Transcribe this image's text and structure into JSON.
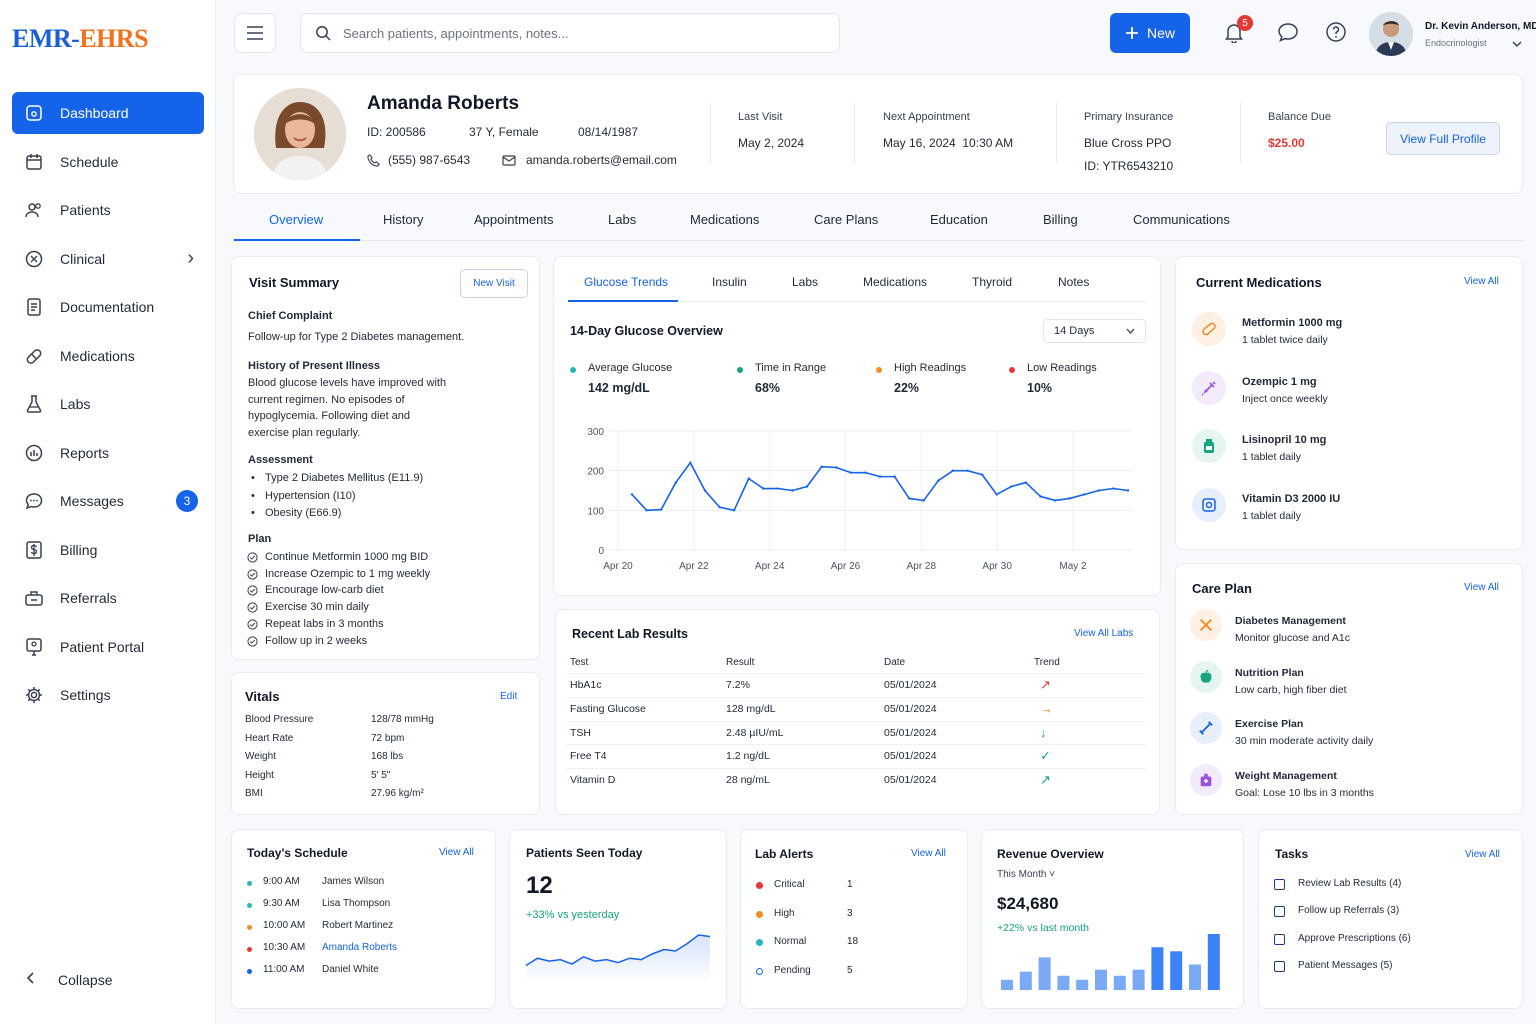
{
  "logo": {
    "part1": "EMR-",
    "part2": "EHRS"
  },
  "sidebar": {
    "items": [
      {
        "label": "Dashboard",
        "icon": "home-icon",
        "active": true
      },
      {
        "label": "Schedule",
        "icon": "calendar-icon"
      },
      {
        "label": "Patients",
        "icon": "users-icon"
      },
      {
        "label": "Clinical",
        "icon": "clinical-icon",
        "chevron": "›"
      },
      {
        "label": "Documentation",
        "icon": "document-icon"
      },
      {
        "label": "Medications",
        "icon": "pill-icon"
      },
      {
        "label": "Labs",
        "icon": "flask-icon"
      },
      {
        "label": "Reports",
        "icon": "chart-icon"
      },
      {
        "label": "Messages",
        "icon": "message-icon",
        "badge": "3"
      },
      {
        "label": "Billing",
        "icon": "dollar-icon"
      },
      {
        "label": "Referrals",
        "icon": "referral-icon"
      },
      {
        "label": "Patient Portal",
        "icon": "portal-icon"
      },
      {
        "label": "Settings",
        "icon": "gear-icon"
      }
    ],
    "collapse_label": "Collapse"
  },
  "topbar": {
    "search_placeholder": "Search patients, appointments, notes...",
    "new_label": "New",
    "notification_count": "5",
    "doctor_name": "Dr. Kevin Anderson, MD",
    "doctor_role": "Endocrinologist"
  },
  "patient": {
    "name": "Amanda Roberts",
    "id": "ID: 200586",
    "age_sex": "37 Y, Female",
    "dob": "08/14/1987",
    "phone": "(555) 987-6543",
    "email": "amanda.roberts@email.com",
    "last_visit_label": "Last Visit",
    "last_visit": "May 2, 2024",
    "next_appt_label": "Next Appointment",
    "next_appt": "May 16, 2024  10:30 AM",
    "insurance_label": "Primary Insurance",
    "insurance": "Blue Cross PPO",
    "insurance_id": "ID: YTR6543210",
    "balance_label": "Balance Due",
    "balance": "$25.00",
    "view_profile": "View Full Profile"
  },
  "tabs": [
    "Overview",
    "History",
    "Appointments",
    "Labs",
    "Medications",
    "Care Plans",
    "Education",
    "Billing",
    "Communications"
  ],
  "visit_summary": {
    "title": "Visit Summary",
    "new_visit": "New Visit",
    "chief_complaint_label": "Chief Complaint",
    "chief_complaint": "Follow-up for Type 2 Diabetes management.",
    "hpi_label": "History of Present Illness",
    "hpi_lines": [
      "Blood glucose levels have improved with",
      "current regimen. No episodes of",
      "hypoglycemia. Following diet and",
      "exercise plan regularly."
    ],
    "assessment_label": "Assessment",
    "assessment": [
      "Type 2 Diabetes Mellitus (E11.9)",
      "Hypertension (I10)",
      "Obesity (E66.9)"
    ],
    "plan_label": "Plan",
    "plan": [
      "Continue Metformin 1000 mg BID",
      "Increase Ozempic to 1 mg weekly",
      "Encourage low-carb diet",
      "Exercise 30 min daily",
      "Repeat labs in 3 months",
      "Follow up in 2 weeks"
    ]
  },
  "vitals": {
    "title": "Vitals",
    "edit": "Edit",
    "rows": [
      {
        "label": "Blood Pressure",
        "value": "128/78 mmHg"
      },
      {
        "label": "Heart Rate",
        "value": "72 bpm"
      },
      {
        "label": "Weight",
        "value": "168 lbs"
      },
      {
        "label": "Height",
        "value": "5' 5\""
      },
      {
        "label": "BMI",
        "value": "27.96 kg/m²"
      }
    ]
  },
  "glucose": {
    "tabs": [
      "Glucose Trends",
      "Insulin",
      "Labs",
      "Medications",
      "Thyroid",
      "Notes"
    ],
    "title": "14-Day Glucose Overview",
    "range": "14 Days",
    "stats": [
      {
        "label": "Average Glucose",
        "value": "142 mg/dL",
        "color": "#2bb3c0"
      },
      {
        "label": "Time in Range",
        "value": "68%",
        "color": "#16a37f"
      },
      {
        "label": "High Readings",
        "value": "22%",
        "color": "#f28c28"
      },
      {
        "label": "Low Readings",
        "value": "10%",
        "color": "#e53935"
      }
    ]
  },
  "chart_data": {
    "type": "line",
    "x_labels": [
      "Apr 20",
      "Apr 22",
      "Apr 24",
      "Apr 26",
      "Apr 28",
      "Apr 30",
      "May 2"
    ],
    "ylim": [
      0,
      300
    ],
    "yticks": [
      "300",
      "200",
      "100",
      "0"
    ],
    "series": [
      {
        "values": [
          140,
          100,
          102,
          170,
          220,
          150,
          108,
          100,
          180,
          155,
          155,
          150,
          160,
          210,
          208,
          195,
          195,
          185,
          185,
          130,
          125,
          175,
          200,
          200,
          190,
          140,
          160,
          170,
          135,
          125,
          130,
          140,
          150,
          155,
          150
        ],
        "color": "#1563e8"
      }
    ],
    "grid": true
  },
  "labs": {
    "title": "Recent Lab Results",
    "view_all": "View All Labs",
    "headers": [
      "Test",
      "Result",
      "Date",
      "Trend"
    ],
    "rows": [
      {
        "test": "HbA1c",
        "result": "7.2%",
        "date": "05/01/2024",
        "trend": "↗",
        "color": "#e53935"
      },
      {
        "test": "Fasting Glucose",
        "result": "128 mg/dL",
        "date": "05/01/2024",
        "trend": "→",
        "color": "#f28c28"
      },
      {
        "test": "TSH",
        "result": "2.48 µIU/mL",
        "date": "05/01/2024",
        "trend": "↓",
        "color": "#16a37f"
      },
      {
        "test": "Free T4",
        "result": "1.2 ng/dL",
        "date": "05/01/2024",
        "trend": "✓",
        "color": "#16a37f"
      },
      {
        "test": "Vitamin D",
        "result": "28 ng/mL",
        "date": "05/01/2024",
        "trend": "↗",
        "color": "#16a37f"
      }
    ]
  },
  "medications": {
    "title": "Current Medications",
    "view_all": "View All",
    "items": [
      {
        "name": "Metformin 1000 mg",
        "dose": "1 tablet twice daily",
        "icon": "pill-icon",
        "color": "#f28c28",
        "bg": "#fef1e4"
      },
      {
        "name": "Ozempic 1 mg",
        "dose": "Inject once weekly",
        "icon": "syringe-icon",
        "color": "#9b51e0",
        "bg": "#f3eafc"
      },
      {
        "name": "Lisinopril 10 mg",
        "dose": "1 tablet daily",
        "icon": "bottle-icon",
        "color": "#16a37f",
        "bg": "#e4f6ef"
      },
      {
        "name": "Vitamin D3 2000 IU",
        "dose": "1 tablet daily",
        "icon": "capsule-icon",
        "color": "#1563e8",
        "bg": "#e7effc"
      }
    ]
  },
  "care_plan": {
    "title": "Care Plan",
    "view_all": "View All",
    "items": [
      {
        "name": "Diabetes Management",
        "desc": "Monitor glucose and A1c",
        "icon": "target-icon",
        "color": "#f28c28",
        "bg": "#fef1e4"
      },
      {
        "name": "Nutrition Plan",
        "desc": "Low carb, high fiber diet",
        "icon": "apple-icon",
        "color": "#16a37f",
        "bg": "#e4f6ef"
      },
      {
        "name": "Exercise Plan",
        "desc": "30 min moderate activity daily",
        "icon": "dumbbell-icon",
        "color": "#1563e8",
        "bg": "#e7effc"
      },
      {
        "name": "Weight Management",
        "desc": "Goal: Lose 10 lbs in 3 months",
        "icon": "scale-icon",
        "color": "#9b51e0",
        "bg": "#f3eafc"
      }
    ]
  },
  "schedule": {
    "title": "Today's Schedule",
    "view_all": "View All",
    "items": [
      {
        "time": "9:00 AM",
        "name": "James Wilson",
        "color": "#2bb3c0"
      },
      {
        "time": "9:30 AM",
        "name": "Lisa Thompson",
        "color": "#2bb3c0"
      },
      {
        "time": "10:00 AM",
        "name": "Robert Martinez",
        "color": "#f28c28"
      },
      {
        "time": "10:30 AM",
        "name": "Amanda Roberts",
        "color": "#e53935",
        "highlight": true
      },
      {
        "time": "11:00 AM",
        "name": "Daniel White",
        "color": "#1563e8"
      }
    ]
  },
  "patients_seen": {
    "title": "Patients Seen Today",
    "count": "12",
    "change": "+33% vs yesterday",
    "spark": [
      20,
      30,
      26,
      28,
      22,
      32,
      26,
      28,
      24,
      30,
      28,
      36,
      42,
      40,
      50,
      62,
      60
    ]
  },
  "lab_alerts": {
    "title": "Lab Alerts",
    "view_all": "View All",
    "items": [
      {
        "label": "Critical",
        "count": "1",
        "color": "#e53935"
      },
      {
        "label": "High",
        "count": "3",
        "color": "#f28c28"
      },
      {
        "label": "Normal",
        "count": "18",
        "color": "#2bb3c0"
      },
      {
        "label": "Pending",
        "count": "5",
        "color": "hollow"
      }
    ]
  },
  "revenue": {
    "title": "Revenue Overview",
    "period": "This Month ˅",
    "amount": "$24,680",
    "change": "+22% vs last month",
    "bars": [
      10,
      18,
      32,
      14,
      10,
      20,
      14,
      20,
      42,
      38,
      25,
      55
    ]
  },
  "tasks": {
    "title": "Tasks",
    "view_all": "View All",
    "items": [
      "Review Lab Results (4)",
      "Follow up Referrals (3)",
      "Approve Prescriptions (6)",
      "Patient Messages (5)"
    ]
  }
}
